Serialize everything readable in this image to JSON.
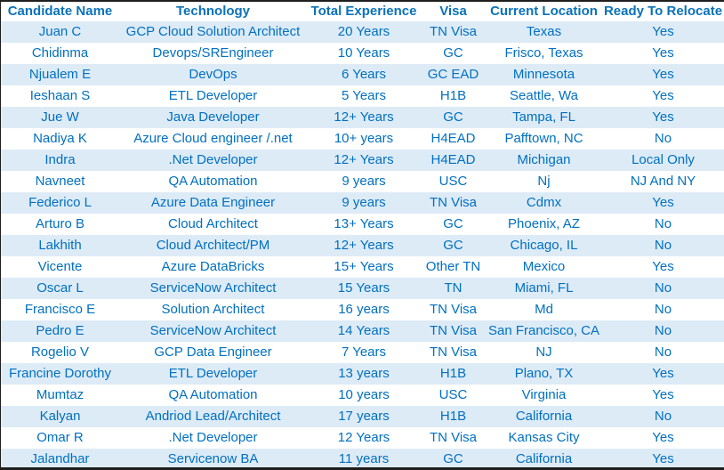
{
  "table": {
    "columns": [
      "Candidate Name",
      "Technology",
      "Total Experience",
      "Visa",
      "Current Location",
      "Ready To Relocate"
    ],
    "rows": [
      [
        "Juan C",
        "GCP Cloud Solution Architect",
        "20 Years",
        "TN Visa",
        "Texas",
        "Yes"
      ],
      [
        "Chidinma",
        "Devops/SREngineer",
        "10 Years",
        "GC",
        "Frisco, Texas",
        "Yes"
      ],
      [
        "Njualem E",
        "DevOps",
        "6 Years",
        "GC EAD",
        "Minnesota",
        "Yes"
      ],
      [
        "Ieshaan S",
        "ETL Developer",
        "5 Years",
        "H1B",
        "Seattle, Wa",
        "Yes"
      ],
      [
        "Jue W",
        "Java Developer",
        "12+ Years",
        "GC",
        "Tampa, FL",
        "Yes"
      ],
      [
        "Nadiya K",
        "Azure Cloud engineer /.net",
        "10+ years",
        "H4EAD",
        "Pafftown, NC",
        "No"
      ],
      [
        "Indra",
        ".Net Developer",
        "12+ Years",
        "H4EAD",
        "Michigan",
        "Local Only"
      ],
      [
        "Navneet",
        "QA Automation",
        "9 years",
        "USC",
        "Nj",
        "NJ And NY"
      ],
      [
        "Federico L",
        "Azure Data Engineer",
        "9 years",
        "TN Visa",
        "Cdmx",
        "Yes"
      ],
      [
        "Arturo B",
        "Cloud Architect",
        "13+ Years",
        "GC",
        "Phoenix, AZ",
        "No"
      ],
      [
        "Lakhith",
        "Cloud Architect/PM",
        "12+ Years",
        "GC",
        "Chicago, IL",
        "No"
      ],
      [
        "Vicente",
        "Azure DataBricks",
        "15+ Years",
        "Other TN",
        "Mexico",
        "Yes"
      ],
      [
        "Oscar L",
        "ServiceNow Architect",
        "15 Years",
        "TN",
        "Miami, FL",
        "No"
      ],
      [
        "Francisco E",
        "Solution Architect",
        "16 years",
        "TN Visa",
        "Md",
        "No"
      ],
      [
        "Pedro E",
        "ServiceNow Architect",
        "14 Years",
        "TN Visa",
        "San Francisco, CA",
        "No"
      ],
      [
        "Rogelio V",
        "GCP Data Engineer",
        "7 Years",
        "TN Visa",
        "NJ",
        "No"
      ],
      [
        "Francine Dorothy",
        "ETL Developer",
        "13 years",
        "H1B",
        "Plano, TX",
        "Yes"
      ],
      [
        "Mumtaz",
        "QA Automation",
        "10 years",
        "USC",
        "Virginia",
        "Yes"
      ],
      [
        "Kalyan",
        "Andriod Lead/Architect",
        "17 years",
        "H1B",
        "California",
        "No"
      ],
      [
        "Omar R",
        ".Net Developer",
        "12 Years",
        "TN Visa",
        "Kansas City",
        "Yes"
      ],
      [
        "Jalandhar",
        "Servicenow BA",
        "11 years",
        "GC",
        "California",
        "Yes"
      ]
    ]
  },
  "colors": {
    "text": "#0070C0",
    "band": "#DDEBF7",
    "background": "#FFFFFF"
  }
}
